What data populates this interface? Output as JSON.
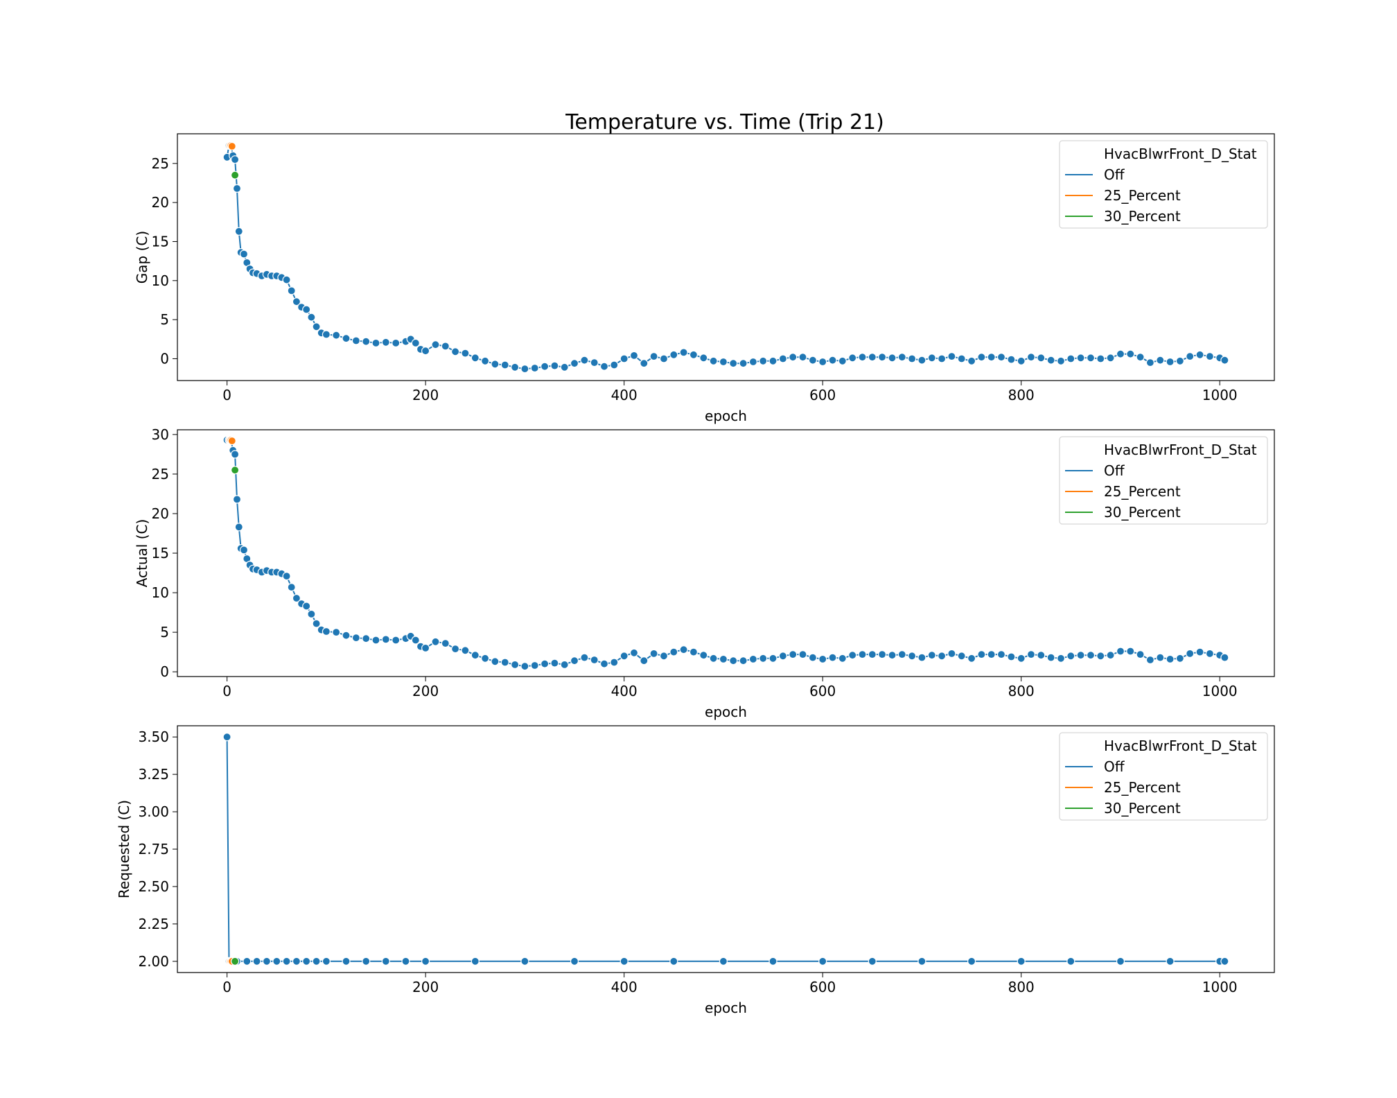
{
  "figure": {
    "title": "Temperature vs. Time (Trip 21)"
  },
  "legend": {
    "title": "HvacBlwrFront_D_Stat",
    "entries": [
      {
        "label": "Off",
        "color": "#1f77b4"
      },
      {
        "label": "25_Percent",
        "color": "#ff7f0e"
      },
      {
        "label": "30_Percent",
        "color": "#2ca02c"
      }
    ]
  },
  "chart_data": [
    {
      "type": "line",
      "xlabel": "epoch",
      "ylabel": "Gap (C)",
      "xlim": [
        -50,
        1055
      ],
      "ylim": [
        -2.8,
        28.8
      ],
      "xticks": [
        0,
        200,
        400,
        600,
        800,
        1000
      ],
      "yticks": [
        0,
        5,
        10,
        15,
        20,
        25
      ],
      "ytick_labels": [
        "0",
        "5",
        "10",
        "15",
        "20",
        "25"
      ],
      "series": [
        {
          "name": "Off",
          "color": "#1f77b4",
          "x": [
            0,
            2,
            4,
            6,
            8,
            10,
            12,
            14,
            17,
            20,
            23,
            26,
            30,
            35,
            40,
            45,
            50,
            55,
            60,
            65,
            70,
            75,
            80,
            85,
            90,
            95,
            100,
            110,
            120,
            130,
            140,
            150,
            160,
            170,
            180,
            185,
            190,
            195,
            200,
            210,
            220,
            230,
            240,
            250,
            260,
            270,
            280,
            290,
            300,
            310,
            320,
            330,
            340,
            350,
            360,
            370,
            380,
            390,
            400,
            410,
            420,
            430,
            440,
            450,
            460,
            470,
            480,
            490,
            500,
            510,
            520,
            530,
            540,
            550,
            560,
            570,
            580,
            590,
            600,
            610,
            620,
            630,
            640,
            650,
            660,
            670,
            680,
            690,
            700,
            710,
            720,
            730,
            740,
            750,
            760,
            770,
            780,
            790,
            800,
            810,
            820,
            830,
            840,
            850,
            860,
            870,
            880,
            890,
            900,
            910,
            920,
            930,
            940,
            950,
            960,
            970,
            980,
            990,
            1000,
            1005
          ],
          "y": [
            25.8,
            27.3,
            27.3,
            26.0,
            25.5,
            21.8,
            16.3,
            13.6,
            13.4,
            12.3,
            11.5,
            11.0,
            10.9,
            10.6,
            10.8,
            10.6,
            10.6,
            10.4,
            10.1,
            8.7,
            7.3,
            6.6,
            6.3,
            5.3,
            4.1,
            3.3,
            3.1,
            3.0,
            2.6,
            2.3,
            2.2,
            2.0,
            2.1,
            2.0,
            2.2,
            2.5,
            2.0,
            1.2,
            1.0,
            1.8,
            1.6,
            0.9,
            0.7,
            0.1,
            -0.3,
            -0.7,
            -0.8,
            -1.1,
            -1.3,
            -1.2,
            -1.0,
            -0.9,
            -1.1,
            -0.6,
            -0.2,
            -0.5,
            -1.0,
            -0.8,
            0.0,
            0.4,
            -0.6,
            0.3,
            0.0,
            0.5,
            0.8,
            0.5,
            0.1,
            -0.3,
            -0.4,
            -0.6,
            -0.6,
            -0.4,
            -0.3,
            -0.3,
            0.0,
            0.2,
            0.2,
            -0.2,
            -0.4,
            -0.2,
            -0.3,
            0.1,
            0.2,
            0.2,
            0.2,
            0.1,
            0.2,
            0.0,
            -0.2,
            0.1,
            0.0,
            0.3,
            0.0,
            -0.3,
            0.2,
            0.2,
            0.2,
            -0.1,
            -0.3,
            0.2,
            0.1,
            -0.2,
            -0.3,
            0.0,
            0.1,
            0.1,
            0.0,
            0.1,
            0.6,
            0.6,
            0.2,
            -0.5,
            -0.2,
            -0.4,
            -0.3,
            0.3,
            0.5,
            0.3,
            0.1,
            -0.2
          ]
        },
        {
          "name": "25_Percent",
          "color": "#ff7f0e",
          "x": [
            3,
            4,
            5
          ],
          "y": [
            27.3,
            27.3,
            27.2
          ]
        },
        {
          "name": "30_Percent",
          "color": "#2ca02c",
          "x": [
            8
          ],
          "y": [
            23.5
          ]
        }
      ]
    },
    {
      "type": "line",
      "xlabel": "epoch",
      "ylabel": "Actual (C)",
      "xlim": [
        -50,
        1055
      ],
      "ylim": [
        -0.6,
        30.6
      ],
      "xticks": [
        0,
        200,
        400,
        600,
        800,
        1000
      ],
      "yticks": [
        0,
        5,
        10,
        15,
        20,
        25,
        30
      ],
      "ytick_labels": [
        "0",
        "5",
        "10",
        "15",
        "20",
        "25",
        "30"
      ],
      "series": [
        {
          "name": "Off",
          "color": "#1f77b4",
          "x": [
            0,
            2,
            4,
            6,
            8,
            10,
            12,
            14,
            17,
            20,
            23,
            26,
            30,
            35,
            40,
            45,
            50,
            55,
            60,
            65,
            70,
            75,
            80,
            85,
            90,
            95,
            100,
            110,
            120,
            130,
            140,
            150,
            160,
            170,
            180,
            185,
            190,
            195,
            200,
            210,
            220,
            230,
            240,
            250,
            260,
            270,
            280,
            290,
            300,
            310,
            320,
            330,
            340,
            350,
            360,
            370,
            380,
            390,
            400,
            410,
            420,
            430,
            440,
            450,
            460,
            470,
            480,
            490,
            500,
            510,
            520,
            530,
            540,
            550,
            560,
            570,
            580,
            590,
            600,
            610,
            620,
            630,
            640,
            650,
            660,
            670,
            680,
            690,
            700,
            710,
            720,
            730,
            740,
            750,
            760,
            770,
            780,
            790,
            800,
            810,
            820,
            830,
            840,
            850,
            860,
            870,
            880,
            890,
            900,
            910,
            920,
            930,
            940,
            950,
            960,
            970,
            980,
            990,
            1000,
            1005
          ],
          "y": [
            29.3,
            29.3,
            29.3,
            28.0,
            27.5,
            21.8,
            18.3,
            15.6,
            15.4,
            14.3,
            13.5,
            13.0,
            12.9,
            12.6,
            12.8,
            12.6,
            12.6,
            12.4,
            12.1,
            10.7,
            9.3,
            8.6,
            8.3,
            7.3,
            6.1,
            5.3,
            5.1,
            5.0,
            4.6,
            4.3,
            4.2,
            4.0,
            4.1,
            4.0,
            4.2,
            4.5,
            4.0,
            3.2,
            3.0,
            3.8,
            3.6,
            2.9,
            2.7,
            2.1,
            1.7,
            1.3,
            1.2,
            0.9,
            0.7,
            0.8,
            1.0,
            1.1,
            0.9,
            1.4,
            1.8,
            1.5,
            1.0,
            1.2,
            2.0,
            2.4,
            1.4,
            2.3,
            2.0,
            2.5,
            2.8,
            2.5,
            2.1,
            1.7,
            1.6,
            1.4,
            1.4,
            1.6,
            1.7,
            1.7,
            2.0,
            2.2,
            2.2,
            1.8,
            1.6,
            1.8,
            1.7,
            2.1,
            2.2,
            2.2,
            2.2,
            2.1,
            2.2,
            2.0,
            1.8,
            2.1,
            2.0,
            2.3,
            2.0,
            1.7,
            2.2,
            2.2,
            2.2,
            1.9,
            1.7,
            2.2,
            2.1,
            1.8,
            1.7,
            2.0,
            2.1,
            2.1,
            2.0,
            2.1,
            2.6,
            2.6,
            2.2,
            1.5,
            1.8,
            1.6,
            1.7,
            2.3,
            2.5,
            2.3,
            2.1,
            1.8
          ]
        },
        {
          "name": "25_Percent",
          "color": "#ff7f0e",
          "x": [
            3,
            4,
            5
          ],
          "y": [
            29.3,
            29.3,
            29.2
          ]
        },
        {
          "name": "30_Percent",
          "color": "#2ca02c",
          "x": [
            8
          ],
          "y": [
            25.5
          ]
        }
      ]
    },
    {
      "type": "line",
      "xlabel": "epoch",
      "ylabel": "Requested (C)",
      "xlim": [
        -50,
        1055
      ],
      "ylim": [
        1.925,
        3.575
      ],
      "xticks": [
        0,
        200,
        400,
        600,
        800,
        1000
      ],
      "yticks": [
        2.0,
        2.25,
        2.5,
        2.75,
        3.0,
        3.25,
        3.5
      ],
      "ytick_labels": [
        "2.00",
        "2.25",
        "2.50",
        "2.75",
        "3.00",
        "3.25",
        "3.50"
      ],
      "series": [
        {
          "name": "Off",
          "color": "#1f77b4",
          "x": [
            0,
            2,
            10,
            20,
            30,
            40,
            50,
            60,
            70,
            80,
            90,
            100,
            120,
            140,
            160,
            180,
            200,
            250,
            300,
            350,
            400,
            450,
            500,
            550,
            600,
            650,
            700,
            750,
            800,
            850,
            900,
            950,
            1000,
            1005
          ],
          "y": [
            3.5,
            2.0,
            2.0,
            2.0,
            2.0,
            2.0,
            2.0,
            2.0,
            2.0,
            2.0,
            2.0,
            2.0,
            2.0,
            2.0,
            2.0,
            2.0,
            2.0,
            2.0,
            2.0,
            2.0,
            2.0,
            2.0,
            2.0,
            2.0,
            2.0,
            2.0,
            2.0,
            2.0,
            2.0,
            2.0,
            2.0,
            2.0,
            2.0,
            2.0
          ]
        },
        {
          "name": "25_Percent",
          "color": "#ff7f0e",
          "x": [
            3,
            4,
            5
          ],
          "y": [
            2.0,
            2.0,
            2.0
          ]
        },
        {
          "name": "30_Percent",
          "color": "#2ca02c",
          "x": [
            8
          ],
          "y": [
            2.0
          ]
        }
      ]
    }
  ]
}
